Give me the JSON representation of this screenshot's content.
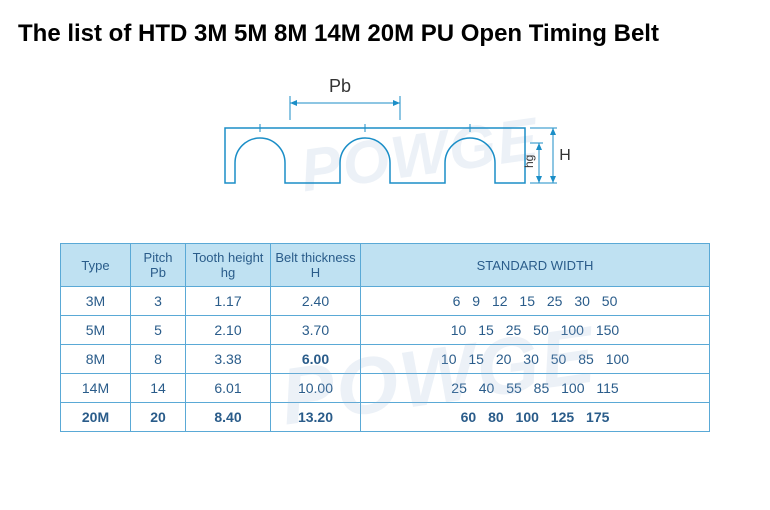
{
  "title": "The list of  HTD 3M 5M 8M 14M 20M PU Open Timing Belt",
  "diagram": {
    "stroke_color": "#1b8ec7",
    "stroke_width": 1.5,
    "label_pb": "Pb",
    "label_hg": "hg",
    "label_h": "H",
    "label_color": "#333333",
    "label_fontsize": 16
  },
  "watermark": {
    "text": "POWGE",
    "color_rgba": "rgba(150,180,210,0.18)"
  },
  "table": {
    "border_color": "#5aa9d6",
    "header_bg": "#bfe1f2",
    "text_color": "#2a5c8a",
    "fontsize": 14,
    "columns": {
      "type": "Type",
      "pitch": "Pitch\nPb",
      "tooth": "Tooth height\nhg",
      "thickness": "Belt thickness\nH",
      "width": "STANDARD  WIDTH"
    },
    "rows": [
      {
        "type": "3M",
        "pitch": "3",
        "tooth": "1.17",
        "thickness": "2.40",
        "widths": "6   9   12  15  25  30  50",
        "bold": false
      },
      {
        "type": "5M",
        "pitch": "5",
        "tooth": "2.10",
        "thickness": "3.70",
        "widths": "10  15  25  50  100  150",
        "bold": false
      },
      {
        "type": "8M",
        "pitch": "8",
        "tooth": "3.38",
        "thickness": "6.00",
        "widths": "10  15  20  30  50  85  100",
        "bold": false,
        "thick_bold": true
      },
      {
        "type": "14M",
        "pitch": "14",
        "tooth": "6.01",
        "thickness": "10.00",
        "widths": "25  40  55  85  100  115",
        "bold": false
      },
      {
        "type": "20M",
        "pitch": "20",
        "tooth": "8.40",
        "thickness": "13.20",
        "widths": "60   80   100   125   175",
        "bold": true
      }
    ]
  }
}
